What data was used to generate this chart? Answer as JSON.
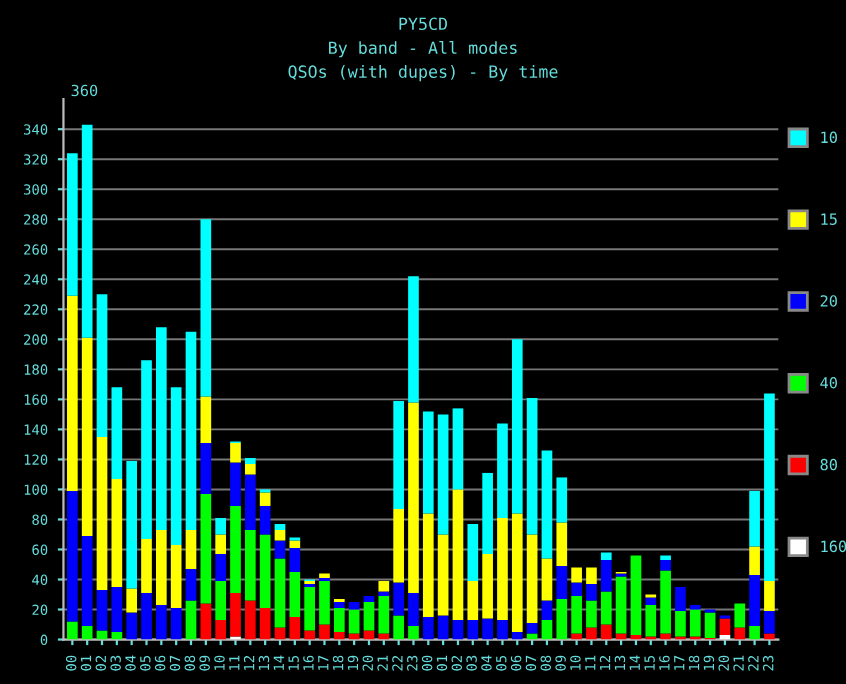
{
  "chart_data": {
    "type": "bar",
    "stacked": true,
    "title": "PY5CD",
    "subtitle": "By band - All modes\nQSOs (with dupes) - By time",
    "annotations": [
      "360"
    ],
    "categories": [
      "00",
      "01",
      "02",
      "03",
      "04",
      "05",
      "06",
      "07",
      "08",
      "09",
      "10",
      "11",
      "12",
      "13",
      "14",
      "15",
      "16",
      "17",
      "18",
      "19",
      "20",
      "21",
      "22",
      "23",
      "00",
      "01",
      "02",
      "03",
      "04",
      "05",
      "06",
      "07",
      "08",
      "09",
      "10",
      "11",
      "12",
      "13",
      "14",
      "15",
      "16",
      "17",
      "18",
      "19",
      "20",
      "21",
      "22",
      "23"
    ],
    "series": [
      {
        "name": "160",
        "color": "#ffffff",
        "values": [
          0,
          0,
          0,
          0,
          0,
          0,
          0,
          0,
          0,
          0,
          0,
          2,
          0,
          0,
          0,
          0,
          0,
          0,
          0,
          0,
          0,
          0,
          0,
          0,
          0,
          0,
          0,
          0,
          0,
          0,
          0,
          0,
          0,
          0,
          0,
          0,
          0,
          0,
          0,
          0,
          0,
          0,
          0,
          0,
          3,
          0,
          0,
          0
        ]
      },
      {
        "name": "80",
        "color": "#ff0000",
        "values": [
          0,
          0,
          0,
          0,
          0,
          0,
          0,
          0,
          0,
          24,
          13,
          29,
          26,
          21,
          8,
          15,
          6,
          10,
          5,
          4,
          6,
          4,
          0,
          0,
          0,
          0,
          0,
          0,
          0,
          0,
          0,
          0,
          0,
          0,
          4,
          8,
          10,
          4,
          3,
          2,
          4,
          2,
          2,
          1,
          11,
          8,
          0,
          4
        ]
      },
      {
        "name": "40",
        "color": "#00ff00",
        "values": [
          12,
          9,
          6,
          5,
          0,
          0,
          0,
          0,
          26,
          73,
          26,
          58,
          47,
          49,
          46,
          30,
          29,
          29,
          16,
          16,
          19,
          25,
          16,
          9,
          0,
          0,
          0,
          0,
          0,
          0,
          0,
          4,
          13,
          27,
          25,
          18,
          22,
          38,
          53,
          21,
          42,
          17,
          18,
          17,
          0,
          16,
          9,
          0
        ]
      },
      {
        "name": "20",
        "color": "#0000ff",
        "values": [
          87,
          60,
          27,
          30,
          18,
          31,
          23,
          21,
          21,
          34,
          18,
          29,
          37,
          19,
          12,
          16,
          2,
          2,
          4,
          5,
          4,
          3,
          22,
          22,
          15,
          16,
          13,
          13,
          14,
          13,
          5,
          7,
          13,
          22,
          9,
          11,
          21,
          2,
          0,
          5,
          7,
          16,
          3,
          2,
          2,
          0,
          34,
          15
        ]
      },
      {
        "name": "15",
        "color": "#ffff00",
        "values": [
          130,
          132,
          102,
          72,
          16,
          36,
          50,
          42,
          26,
          31,
          13,
          13,
          7,
          9,
          7,
          5,
          2,
          3,
          2,
          0,
          0,
          7,
          49,
          127,
          69,
          54,
          87,
          26,
          43,
          68,
          79,
          59,
          28,
          29,
          10,
          11,
          0,
          1,
          0,
          2,
          0,
          0,
          0,
          0,
          0,
          0,
          19,
          20
        ]
      },
      {
        "name": "10",
        "color": "#00ffff",
        "values": [
          95,
          142,
          95,
          61,
          85,
          119,
          135,
          105,
          132,
          118,
          11,
          1,
          4,
          2,
          4,
          2,
          1,
          0,
          0,
          0,
          0,
          0,
          72,
          84,
          68,
          80,
          54,
          38,
          54,
          63,
          116,
          91,
          72,
          30,
          0,
          0,
          5,
          0,
          0,
          0,
          3,
          0,
          0,
          0,
          0,
          0,
          37,
          125
        ]
      }
    ],
    "ylim": [
      0,
      360
    ],
    "yticks": [
      0,
      20,
      40,
      60,
      80,
      100,
      120,
      140,
      160,
      180,
      200,
      220,
      240,
      260,
      280,
      300,
      320,
      340
    ],
    "grid": "y",
    "legend": "right"
  }
}
